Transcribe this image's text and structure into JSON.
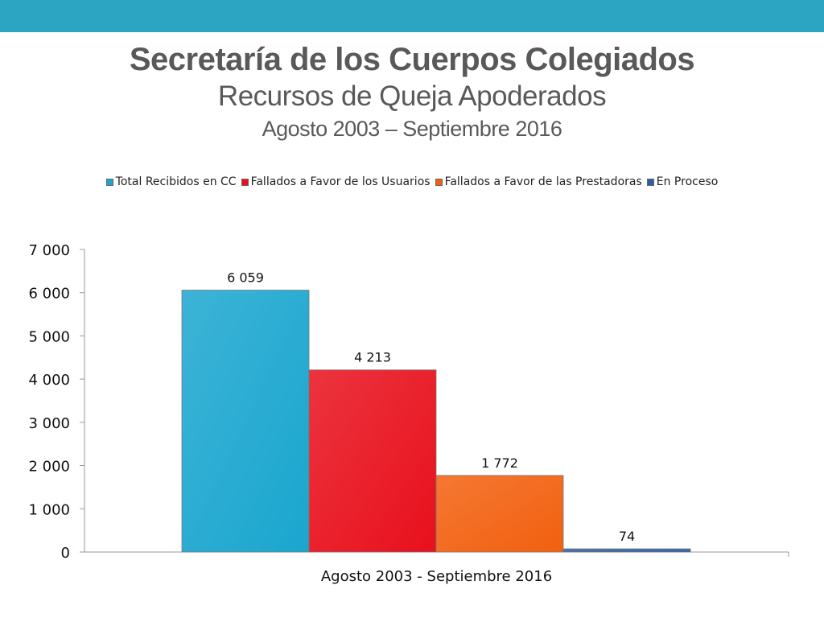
{
  "header": {
    "title": "Secretaría de los Cuerpos Colegiados",
    "subtitle": "Recursos de Queja Apoderados",
    "period": "Agosto 2003 – Septiembre 2016"
  },
  "colors": {
    "band": "#2ca5c3",
    "title": "#595959"
  },
  "chart_data": {
    "type": "bar",
    "categories": [
      "Agosto 2003 - Septiembre 2016"
    ],
    "series": [
      {
        "name": "Total Recibidos en CC",
        "values": [
          6059
        ],
        "label": "6 059",
        "color": "#1aa6cf"
      },
      {
        "name": "Fallados a Favor de los Usuarios",
        "values": [
          4213
        ],
        "label": "4 213",
        "color": "#e8101c"
      },
      {
        "name": "Fallados a Favor de las Prestadoras",
        "values": [
          1772
        ],
        "label": "1 772",
        "color": "#f2600f"
      },
      {
        "name": "En Proceso",
        "values": [
          74
        ],
        "label": "74",
        "color": "#2c5fa8"
      }
    ],
    "ylim": [
      0,
      7000
    ],
    "yticks": [
      {
        "value": 0,
        "label": "0"
      },
      {
        "value": 1000,
        "label": "1 000"
      },
      {
        "value": 2000,
        "label": "2 000"
      },
      {
        "value": 3000,
        "label": "3 000"
      },
      {
        "value": 4000,
        "label": "4 000"
      },
      {
        "value": 5000,
        "label": "5 000"
      },
      {
        "value": 6000,
        "label": "6 000"
      },
      {
        "value": 7000,
        "label": "7 000"
      }
    ],
    "grid": false,
    "legend_position": "top"
  }
}
